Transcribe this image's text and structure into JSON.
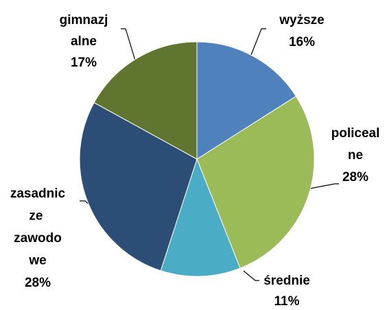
{
  "chart_data": {
    "type": "pie",
    "categories": [
      "wyższe",
      "policealne",
      "średnie",
      "zasadnicze zawodowe",
      "gimnazjalne"
    ],
    "values": [
      16,
      28,
      11,
      28,
      17
    ],
    "value_labels": [
      "16%",
      "28%",
      "11%",
      "28%",
      "17%"
    ],
    "colors": [
      "#4f81bd",
      "#9bbb59",
      "#4bacc6",
      "#2c4d75",
      "#5f7530"
    ]
  }
}
